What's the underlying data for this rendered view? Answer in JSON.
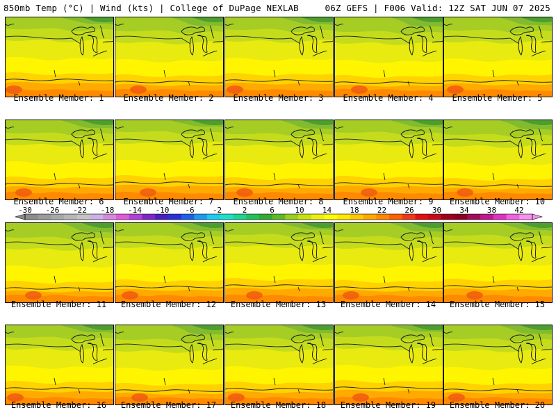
{
  "header": {
    "left": "850mb Temp (°C) | Wind (kts) | College of DuPage NEXLAB",
    "right": "06Z GEFS | F006 Valid: 12Z SAT JUN 07 2025"
  },
  "members": [
    "Ensemble Member: 1",
    "Ensemble Member: 2",
    "Ensemble Member: 3",
    "Ensemble Member: 4",
    "Ensemble Member: 5",
    "Ensemble Member: 6",
    "Ensemble Member: 7",
    "Ensemble Member: 8",
    "Ensemble Member: 9",
    "Ensemble Member: 10",
    "Ensemble Member: 11",
    "Ensemble Member: 12",
    "Ensemble Member: 13",
    "Ensemble Member: 14",
    "Ensemble Member: 15",
    "Ensemble Member: 16",
    "Ensemble Member: 17",
    "Ensemble Member: 18",
    "Ensemble Member: 19",
    "Ensemble Member: 20"
  ],
  "colorbar": {
    "labels": [
      "-30",
      "-26",
      "-22",
      "-18",
      "-14",
      "-10",
      "-6",
      "-2",
      "2",
      "6",
      "10",
      "14",
      "18",
      "22",
      "26",
      "30",
      "34",
      "38",
      "42"
    ],
    "colors": [
      "#8c8c8c",
      "#9a9a9a",
      "#a8a8a8",
      "#b6b6b6",
      "#c4c4c4",
      "#cdb0e6",
      "#d888e0",
      "#e05ad6",
      "#b23fd6",
      "#7a28c8",
      "#4a1ec0",
      "#2a30d8",
      "#1e60e6",
      "#1e9af0",
      "#1ecaf0",
      "#1ee0c8",
      "#1ed490",
      "#22c05a",
      "#34a830",
      "#5eb82a",
      "#98d01e",
      "#c8e010",
      "#ecee10",
      "#ffff00",
      "#ffe800",
      "#ffc800",
      "#ffa800",
      "#ff8800",
      "#ff6000",
      "#f03818",
      "#e01010",
      "#c80818",
      "#a00018",
      "#8a0020",
      "#a00c5a",
      "#c01890",
      "#e030c0",
      "#f060e0",
      "#f890f0"
    ]
  }
}
